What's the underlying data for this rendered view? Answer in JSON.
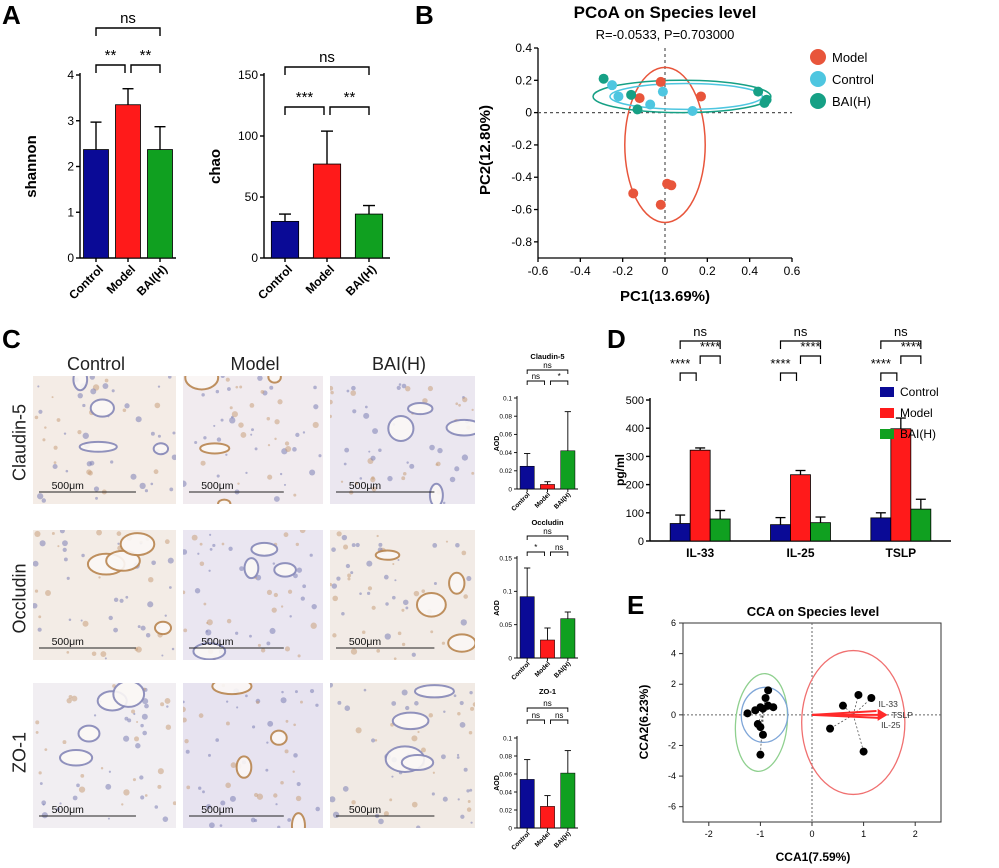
{
  "panels": {
    "a": "A",
    "b": "B",
    "c": "C",
    "d": "D",
    "e": "E"
  },
  "colors": {
    "control": "#0a0a96",
    "model": "#ff1a1a",
    "bai": "#10a020",
    "pcoa_model": "#e8553b",
    "pcoa_control": "#4ec6e0",
    "pcoa_bai": "#16a085",
    "cca_red": "#ff2a2a",
    "cca_ellipse_red": "#f07070",
    "cca_ellipse_green": "#8fd08f",
    "cca_ellipse_blue": "#7fa6d8"
  },
  "panel_c": {
    "columns": [
      "Control",
      "Model",
      "BAI(H)"
    ],
    "rows": [
      "Claudin-5",
      "Occludin",
      "ZO-1"
    ],
    "scale_label": "500μm"
  },
  "chart_data": [
    {
      "id": "A1",
      "type": "bar",
      "categories": [
        "Control",
        "Model",
        "BAI(H)"
      ],
      "values": [
        2.37,
        3.35,
        2.37
      ],
      "errors": [
        0.6,
        0.35,
        0.5
      ],
      "ylabel": "shannon",
      "ylim": [
        0,
        4
      ],
      "yticks": [
        0,
        1,
        2,
        3,
        4
      ],
      "significance": [
        {
          "from": 0,
          "to": 1,
          "label": "**"
        },
        {
          "from": 1,
          "to": 2,
          "label": "**"
        },
        {
          "from": 0,
          "to": 2,
          "label": "ns"
        }
      ]
    },
    {
      "id": "A2",
      "type": "bar",
      "categories": [
        "Control",
        "Model",
        "BAI(H)"
      ],
      "values": [
        30,
        77,
        36
      ],
      "errors": [
        6,
        27,
        7
      ],
      "ylabel": "chao",
      "ylim": [
        0,
        150
      ],
      "yticks": [
        0,
        50,
        100,
        150
      ],
      "significance": [
        {
          "from": 0,
          "to": 1,
          "label": "***"
        },
        {
          "from": 1,
          "to": 2,
          "label": "**"
        },
        {
          "from": 0,
          "to": 2,
          "label": "ns"
        }
      ]
    },
    {
      "id": "B",
      "type": "scatter",
      "title": "PCoA on Species level",
      "subtitle": "R=-0.0533, P=0.703000",
      "xlabel": "PC1(13.69%)",
      "ylabel": "PC2(12.80%)",
      "xlim": [
        -0.6,
        0.6
      ],
      "ylim": [
        -0.9,
        0.4
      ],
      "xticks": [
        -0.6,
        -0.4,
        -0.2,
        0,
        0.2,
        0.4,
        0.6
      ],
      "yticks": [
        0.4,
        0.2,
        0,
        -0.2,
        -0.4,
        -0.6,
        -0.8
      ],
      "series": [
        {
          "name": "Model",
          "points": [
            [
              -0.15,
              -0.5
            ],
            [
              0.03,
              -0.45
            ],
            [
              0.01,
              -0.44
            ],
            [
              -0.02,
              -0.57
            ],
            [
              -0.02,
              0.19
            ],
            [
              0.17,
              0.1
            ],
            [
              -0.12,
              0.09
            ]
          ]
        },
        {
          "name": "Control",
          "points": [
            [
              -0.25,
              0.17
            ],
            [
              -0.07,
              0.05
            ],
            [
              -0.01,
              0.13
            ],
            [
              0.13,
              0.01
            ],
            [
              -0.22,
              0.1
            ]
          ]
        },
        {
          "name": "BAI(H)",
          "points": [
            [
              -0.29,
              0.21
            ],
            [
              -0.16,
              0.11
            ],
            [
              -0.13,
              0.02
            ],
            [
              0.44,
              0.13
            ],
            [
              0.47,
              0.06
            ],
            [
              0.48,
              0.08
            ]
          ]
        }
      ],
      "ellipses": [
        {
          "series": "Model",
          "cx": 0.0,
          "cy": -0.2,
          "rx": 0.19,
          "ry": 0.48
        },
        {
          "series": "Control",
          "cx": 0.1,
          "cy": 0.1,
          "rx": 0.36,
          "ry": 0.08
        },
        {
          "series": "BAI(H)",
          "cx": 0.08,
          "cy": 0.1,
          "rx": 0.42,
          "ry": 0.1
        }
      ]
    },
    {
      "id": "C1",
      "type": "bar",
      "title": "Claudin-5",
      "categories": [
        "Control",
        "Model",
        "BAI(H)"
      ],
      "values": [
        0.025,
        0.005,
        0.042
      ],
      "errors": [
        0.014,
        0.003,
        0.043
      ],
      "ylabel": "AOD",
      "ylim": [
        0,
        0.1
      ],
      "yticks": [
        0,
        0.02,
        0.04,
        0.06,
        0.08,
        0.1
      ],
      "significance": [
        {
          "from": 0,
          "to": 1,
          "label": "ns"
        },
        {
          "from": 1,
          "to": 2,
          "label": "*"
        },
        {
          "from": 0,
          "to": 2,
          "label": "ns"
        }
      ]
    },
    {
      "id": "C2",
      "type": "bar",
      "title": "Occludin",
      "categories": [
        "Control",
        "Model",
        "BAI(H)"
      ],
      "values": [
        0.092,
        0.027,
        0.059
      ],
      "errors": [
        0.043,
        0.018,
        0.01
      ],
      "ylabel": "AOD",
      "ylim": [
        0,
        0.15
      ],
      "yticks": [
        0,
        0.05,
        0.1,
        0.15
      ],
      "significance": [
        {
          "from": 0,
          "to": 1,
          "label": "*"
        },
        {
          "from": 1,
          "to": 2,
          "label": "ns"
        },
        {
          "from": 0,
          "to": 2,
          "label": "ns"
        }
      ]
    },
    {
      "id": "C3",
      "type": "bar",
      "title": "ZO-1",
      "categories": [
        "Control",
        "Model",
        "BAI(H)"
      ],
      "values": [
        0.054,
        0.024,
        0.061
      ],
      "errors": [
        0.022,
        0.012,
        0.025
      ],
      "ylabel": "AOD",
      "ylim": [
        0,
        0.1
      ],
      "yticks": [
        0,
        0.02,
        0.04,
        0.06,
        0.08,
        0.1
      ],
      "significance": [
        {
          "from": 0,
          "to": 1,
          "label": "ns"
        },
        {
          "from": 1,
          "to": 2,
          "label": "ns"
        },
        {
          "from": 0,
          "to": 2,
          "label": "ns"
        }
      ]
    },
    {
      "id": "D",
      "type": "bar",
      "categories": [
        "IL-33",
        "IL-25",
        "TSLP"
      ],
      "series": [
        {
          "name": "Control",
          "values": [
            62,
            58,
            82
          ],
          "errors": [
            30,
            25,
            18
          ]
        },
        {
          "name": "Model",
          "values": [
            322,
            235,
            398
          ],
          "errors": [
            8,
            15,
            38
          ]
        },
        {
          "name": "BAI(H)",
          "values": [
            78,
            65,
            113
          ],
          "errors": [
            30,
            20,
            35
          ]
        }
      ],
      "ylabel": "pg/ml",
      "ylim": [
        0,
        500
      ],
      "yticks": [
        0,
        100,
        200,
        300,
        400,
        500
      ],
      "significance": [
        {
          "from": 0,
          "to": 1,
          "label": "****"
        },
        {
          "from": 1,
          "to": 2,
          "label": "****"
        },
        {
          "from": 0,
          "to": 2,
          "label": "ns"
        }
      ]
    },
    {
      "id": "E",
      "type": "scatter",
      "title": "CCA on Species level",
      "xlabel": "CCA1(7.59%)",
      "ylabel": "CCA2(6.23%)",
      "xlim": [
        -2.5,
        2.5
      ],
      "ylim": [
        -7,
        6
      ],
      "xticks": [
        -2,
        -1,
        0,
        1,
        2
      ],
      "yticks": [
        -6,
        -4,
        -2,
        0,
        2,
        4,
        6
      ],
      "points": [
        [
          -1.25,
          0.1
        ],
        [
          -1.1,
          0.3
        ],
        [
          -1.0,
          0.5
        ],
        [
          -0.95,
          0.4
        ],
        [
          -0.9,
          1.1
        ],
        [
          -0.85,
          0.6
        ],
        [
          -0.75,
          0.5
        ],
        [
          -1.05,
          -0.6
        ],
        [
          -1.0,
          -0.8
        ],
        [
          -0.95,
          -1.3
        ],
        [
          -1.0,
          -2.6
        ],
        [
          -0.85,
          1.6
        ],
        [
          0.35,
          -0.9
        ],
        [
          0.6,
          0.6
        ],
        [
          0.9,
          1.3
        ],
        [
          1.0,
          -2.4
        ],
        [
          1.15,
          1.1
        ]
      ],
      "arrows": [
        {
          "label": "IL-33",
          "x": 1.25,
          "y": 0.25
        },
        {
          "label": "TSLP",
          "x": 1.35,
          "y": 0.0
        },
        {
          "label": "IL-25",
          "x": 1.3,
          "y": -0.2
        }
      ],
      "ellipses": [
        {
          "color": "green",
          "cx": -0.98,
          "cy": -0.5,
          "rx": 0.5,
          "ry": 3.2
        },
        {
          "color": "blue",
          "cx": -0.92,
          "cy": 0.0,
          "rx": 0.45,
          "ry": 1.8
        },
        {
          "color": "red",
          "cx": 0.8,
          "cy": -0.5,
          "rx": 1.0,
          "ry": 4.7
        }
      ]
    }
  ]
}
